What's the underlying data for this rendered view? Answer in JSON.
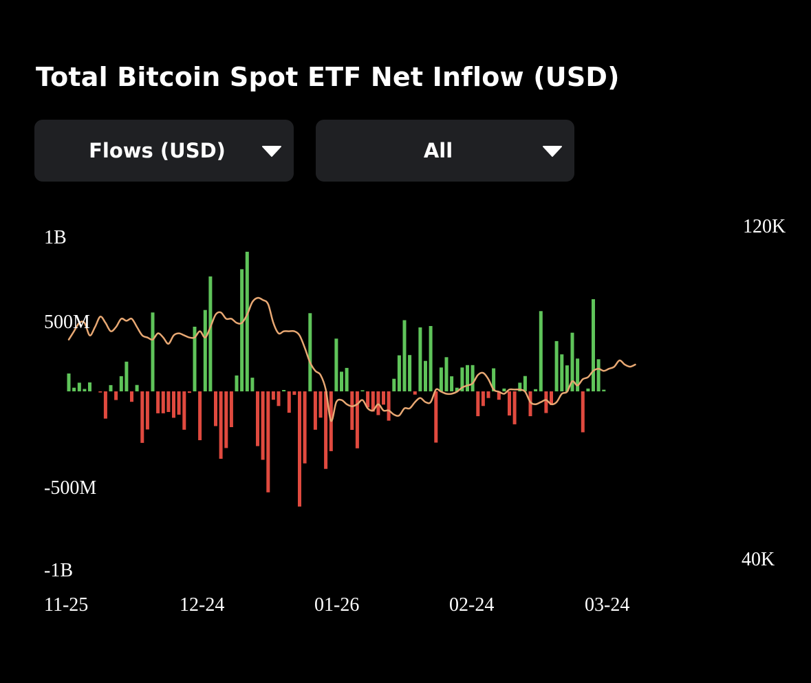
{
  "title": "Total Bitcoin Spot ETF Net Inflow (USD)",
  "dropdowns": {
    "metric": "Flows (USD)",
    "range": "All"
  },
  "colors": {
    "inflow": "#5fc45a",
    "outflow": "#e04a3f",
    "price_line": "#e8a873",
    "panel": "#1f2023",
    "background": "#000000"
  },
  "chart_data": {
    "type": "bar",
    "title": "Total Bitcoin Spot ETF Net Inflow (USD)",
    "y_left": {
      "ticks": [
        "1B",
        "500M",
        "-500M",
        "-1B"
      ],
      "range": [
        -1000000000,
        1000000000
      ]
    },
    "y_right": {
      "ticks": [
        "120K",
        "40K"
      ],
      "range": [
        40000,
        120000
      ]
    },
    "x_ticks": [
      "11-25",
      "12-24",
      "01-26",
      "02-24",
      "03-24"
    ],
    "x_range": [
      "2024-11-25",
      "2025-04-02"
    ],
    "series": [
      {
        "type": "bar",
        "unit": "USD",
        "points": [
          [
            "2024-11-25",
            128000000
          ],
          [
            "2024-11-26",
            26000000
          ],
          [
            "2024-11-27",
            62000000
          ],
          [
            "2024-11-28",
            17000000
          ],
          [
            "2024-11-29",
            64000000
          ],
          [
            "2024-12-01",
            -8000000
          ],
          [
            "2024-12-02",
            -195000000
          ],
          [
            "2024-12-03",
            45000000
          ],
          [
            "2024-12-04",
            -62000000
          ],
          [
            "2024-12-05",
            109000000
          ],
          [
            "2024-12-06",
            213000000
          ],
          [
            "2024-12-07",
            -75000000
          ],
          [
            "2024-12-08",
            46000000
          ],
          [
            "2024-12-09",
            -369000000
          ],
          [
            "2024-12-10",
            -273000000
          ],
          [
            "2024-12-11",
            565000000
          ],
          [
            "2024-12-12",
            -157000000
          ],
          [
            "2024-12-13",
            -157000000
          ],
          [
            "2024-12-14",
            -148000000
          ],
          [
            "2024-12-15",
            -189000000
          ],
          [
            "2024-12-16",
            -167000000
          ],
          [
            "2024-12-17",
            -275000000
          ],
          [
            "2024-12-18",
            -11000000
          ],
          [
            "2024-12-19",
            463000000
          ],
          [
            "2024-12-20",
            -350000000
          ],
          [
            "2024-12-21",
            583000000
          ],
          [
            "2024-12-22",
            823000000
          ],
          [
            "2024-12-23",
            -249000000
          ],
          [
            "2024-12-24",
            -483000000
          ],
          [
            "2024-12-25",
            -406000000
          ],
          [
            "2024-12-26",
            -256000000
          ],
          [
            "2024-12-27",
            114000000
          ],
          [
            "2024-12-28",
            875000000
          ],
          [
            "2024-12-29",
            1000000000
          ],
          [
            "2024-12-30",
            98000000
          ],
          [
            "2024-12-31",
            -392000000
          ],
          [
            "2025-01-01",
            -490000000
          ],
          [
            "2025-01-02",
            -723000000
          ],
          [
            "2025-01-03",
            -60000000
          ],
          [
            "2025-01-04",
            -105000000
          ],
          [
            "2025-01-05",
            10000000
          ],
          [
            "2025-01-06",
            -153000000
          ],
          [
            "2025-01-07",
            -25000000
          ],
          [
            "2025-01-08",
            -825000000
          ],
          [
            "2025-01-09",
            -516000000
          ],
          [
            "2025-01-10",
            560000000
          ],
          [
            "2025-01-11",
            -275000000
          ],
          [
            "2025-01-12",
            -188000000
          ],
          [
            "2025-01-13",
            -555000000
          ],
          [
            "2025-01-14",
            -428000000
          ],
          [
            "2025-01-15",
            378000000
          ],
          [
            "2025-01-16",
            141000000
          ],
          [
            "2025-01-17",
            168000000
          ],
          [
            "2025-01-18",
            -276000000
          ],
          [
            "2025-01-19",
            -408000000
          ],
          [
            "2025-01-20",
            8000000
          ],
          [
            "2025-01-21",
            -115000000
          ],
          [
            "2025-01-22",
            -145000000
          ],
          [
            "2025-01-23",
            -170000000
          ],
          [
            "2025-01-24",
            -95000000
          ],
          [
            "2025-01-25",
            -210000000
          ],
          [
            "2025-01-26",
            90000000
          ],
          [
            "2025-01-27",
            258000000
          ],
          [
            "2025-01-28",
            510000000
          ],
          [
            "2025-01-29",
            260000000
          ],
          [
            "2025-01-30",
            -23000000
          ],
          [
            "2025-01-31",
            458000000
          ],
          [
            "2025-02-01",
            218000000
          ],
          [
            "2025-02-02",
            468000000
          ],
          [
            "2025-02-03",
            -367000000
          ],
          [
            "2025-02-04",
            171000000
          ],
          [
            "2025-02-05",
            245000000
          ],
          [
            "2025-02-06",
            108000000
          ],
          [
            "2025-02-07",
            26000000
          ],
          [
            "2025-02-08",
            171000000
          ],
          [
            "2025-02-09",
            188000000
          ],
          [
            "2025-02-10",
            188000000
          ],
          [
            "2025-02-11",
            -178000000
          ],
          [
            "2025-02-12",
            -105000000
          ],
          [
            "2025-02-13",
            -48000000
          ],
          [
            "2025-02-14",
            165000000
          ],
          [
            "2025-02-15",
            -60000000
          ],
          [
            "2025-02-16",
            20000000
          ],
          [
            "2025-02-17",
            -173000000
          ],
          [
            "2025-02-18",
            -236000000
          ],
          [
            "2025-02-19",
            62000000
          ],
          [
            "2025-02-20",
            110000000
          ],
          [
            "2025-02-21",
            -178000000
          ],
          [
            "2025-02-22",
            16000000
          ],
          [
            "2025-02-23",
            575000000
          ],
          [
            "2025-02-24",
            -155000000
          ],
          [
            "2025-02-25",
            -98000000
          ],
          [
            "2025-02-26",
            360000000
          ],
          [
            "2025-02-27",
            265000000
          ],
          [
            "2025-02-28",
            186000000
          ],
          [
            "2025-03-01",
            420000000
          ],
          [
            "2025-03-02",
            235000000
          ],
          [
            "2025-03-03",
            -293000000
          ],
          [
            "2025-03-04",
            20000000
          ],
          [
            "2025-03-05",
            660000000
          ],
          [
            "2025-03-06",
            230000000
          ],
          [
            "2025-03-07",
            12000000
          ]
        ]
      },
      {
        "type": "line",
        "unit": "USD",
        "points": [
          [
            "2024-11-25",
            93000
          ],
          [
            "2024-11-26",
            95000
          ],
          [
            "2024-11-27",
            97000
          ],
          [
            "2024-11-28",
            97000
          ],
          [
            "2024-11-29",
            94000
          ],
          [
            "2024-11-30",
            96000
          ],
          [
            "2024-12-01",
            98500
          ],
          [
            "2024-12-02",
            97000
          ],
          [
            "2024-12-03",
            95000
          ],
          [
            "2024-12-04",
            96000
          ],
          [
            "2024-12-05",
            98000
          ],
          [
            "2024-12-06",
            97500
          ],
          [
            "2024-12-07",
            98000
          ],
          [
            "2024-12-08",
            96000
          ],
          [
            "2024-12-09",
            94000
          ],
          [
            "2024-12-10",
            93500
          ],
          [
            "2024-12-11",
            93000
          ],
          [
            "2024-12-12",
            94500
          ],
          [
            "2024-12-13",
            93500
          ],
          [
            "2024-12-14",
            92000
          ],
          [
            "2024-12-15",
            94000
          ],
          [
            "2024-12-16",
            94500
          ],
          [
            "2024-12-17",
            94000
          ],
          [
            "2024-12-18",
            93500
          ],
          [
            "2024-12-19",
            93500
          ],
          [
            "2024-12-20",
            95000
          ],
          [
            "2024-12-21",
            93500
          ],
          [
            "2024-12-22",
            96000
          ],
          [
            "2024-12-23",
            99000
          ],
          [
            "2024-12-24",
            99500
          ],
          [
            "2024-12-25",
            98000
          ],
          [
            "2024-12-26",
            98000
          ],
          [
            "2024-12-27",
            97000
          ],
          [
            "2024-12-28",
            97000
          ],
          [
            "2024-12-29",
            99000
          ],
          [
            "2024-12-30",
            102000
          ],
          [
            "2024-12-31",
            103000
          ],
          [
            "2025-01-01",
            102500
          ],
          [
            "2025-01-02",
            101500
          ],
          [
            "2025-01-03",
            97000
          ],
          [
            "2025-01-04",
            94500
          ],
          [
            "2025-01-05",
            95000
          ],
          [
            "2025-01-06",
            95000
          ],
          [
            "2025-01-07",
            95000
          ],
          [
            "2025-01-08",
            94000
          ],
          [
            "2025-01-09",
            91000
          ],
          [
            "2025-01-10",
            87500
          ],
          [
            "2025-01-11",
            85500
          ],
          [
            "2025-01-12",
            84500
          ],
          [
            "2025-01-13",
            81000
          ],
          [
            "2025-01-14",
            73500
          ],
          [
            "2025-01-15",
            78000
          ],
          [
            "2025-01-16",
            78500
          ],
          [
            "2025-01-17",
            77500
          ],
          [
            "2025-01-18",
            77000
          ],
          [
            "2025-01-19",
            77500
          ],
          [
            "2025-01-20",
            78500
          ],
          [
            "2025-01-21",
            76500
          ],
          [
            "2025-01-22",
            76000
          ],
          [
            "2025-01-23",
            77500
          ],
          [
            "2025-01-24",
            76000
          ],
          [
            "2025-01-25",
            76000
          ],
          [
            "2025-01-26",
            75000
          ],
          [
            "2025-01-27",
            74800
          ],
          [
            "2025-01-28",
            76500
          ],
          [
            "2025-01-29",
            76500
          ],
          [
            "2025-01-30",
            78000
          ],
          [
            "2025-01-31",
            79000
          ],
          [
            "2025-02-01",
            78000
          ],
          [
            "2025-02-02",
            78000
          ],
          [
            "2025-02-03",
            81000
          ],
          [
            "2025-02-04",
            80500
          ],
          [
            "2025-02-05",
            80000
          ],
          [
            "2025-02-06",
            80000
          ],
          [
            "2025-02-07",
            80500
          ],
          [
            "2025-02-08",
            81500
          ],
          [
            "2025-02-09",
            82000
          ],
          [
            "2025-02-10",
            82500
          ],
          [
            "2025-02-11",
            84500
          ],
          [
            "2025-02-12",
            85000
          ],
          [
            "2025-02-13",
            83500
          ],
          [
            "2025-02-14",
            81000
          ],
          [
            "2025-02-15",
            80500
          ],
          [
            "2025-02-16",
            80000
          ],
          [
            "2025-02-17",
            81000
          ],
          [
            "2025-02-18",
            81000
          ],
          [
            "2025-02-19",
            81000
          ],
          [
            "2025-02-20",
            80500
          ],
          [
            "2025-02-21",
            78000
          ],
          [
            "2025-02-22",
            77500
          ],
          [
            "2025-02-23",
            78000
          ],
          [
            "2025-02-24",
            78500
          ],
          [
            "2025-02-25",
            77500
          ],
          [
            "2025-02-26",
            78000
          ],
          [
            "2025-02-27",
            80000
          ],
          [
            "2025-02-28",
            80500
          ],
          [
            "2025-03-01",
            83000
          ],
          [
            "2025-03-02",
            82000
          ],
          [
            "2025-03-03",
            83500
          ],
          [
            "2025-03-04",
            84000
          ],
          [
            "2025-03-05",
            85500
          ],
          [
            "2025-03-06",
            86000
          ],
          [
            "2025-03-07",
            85500
          ],
          [
            "2025-03-08",
            86000
          ],
          [
            "2025-03-09",
            86500
          ],
          [
            "2025-03-10",
            88000
          ],
          [
            "2025-03-11",
            87000
          ],
          [
            "2025-03-12",
            86500
          ],
          [
            "2025-03-13",
            87000
          ]
        ]
      }
    ]
  }
}
